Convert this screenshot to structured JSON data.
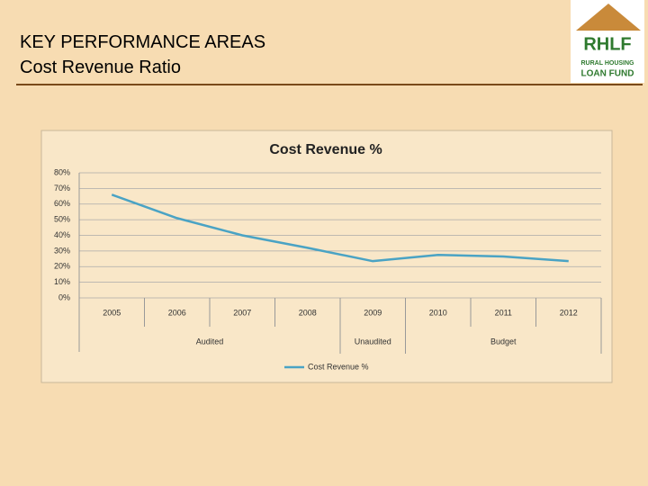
{
  "header": {
    "title": "KEY PERFORMANCE AREAS",
    "subtitle": "Cost Revenue Ratio"
  },
  "logo": {
    "mark": "RHLF",
    "line1": "RURAL HOUSING",
    "line2": "LOAN FUND"
  },
  "chart_data": {
    "type": "line",
    "title": "Cost Revenue %",
    "categories": [
      "2005",
      "2006",
      "2007",
      "2008",
      "2009",
      "2010",
      "2011",
      "2012"
    ],
    "groups": [
      {
        "label": "Audited",
        "span": 4
      },
      {
        "label": "Unaudited",
        "span": 1
      },
      {
        "label": "Budget",
        "span": 3
      }
    ],
    "series": [
      {
        "name": "Cost Revenue %",
        "color": "#4aa3c4",
        "values": [
          66,
          51,
          40,
          32,
          23.5,
          27.5,
          26.5,
          23.5
        ]
      }
    ],
    "ylim": [
      0,
      80
    ],
    "yticks": [
      {
        "value": 0,
        "label": "0%"
      },
      {
        "value": 10,
        "label": "10%"
      },
      {
        "value": 20,
        "label": "20%"
      },
      {
        "value": 30,
        "label": "30%"
      },
      {
        "value": 40,
        "label": "40%"
      },
      {
        "value": 50,
        "label": "50%"
      },
      {
        "value": 60,
        "label": "60%"
      },
      {
        "value": 70,
        "label": "70%"
      },
      {
        "value": 80,
        "label": "80%"
      }
    ],
    "grid": true,
    "legend": "bottom"
  }
}
